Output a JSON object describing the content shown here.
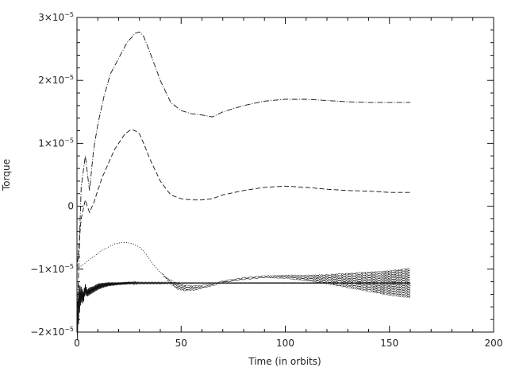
{
  "chart_data": {
    "type": "line",
    "title": "",
    "xlabel": "Time (in orbits)",
    "ylabel": "Torque",
    "xlim": [
      0,
      200
    ],
    "ylim": [
      -2e-05,
      3e-05
    ],
    "grid": false,
    "legend": "none",
    "x_ticks": [
      0,
      50,
      100,
      150,
      200
    ],
    "x_tick_labels": [
      "0",
      "50",
      "100",
      "150",
      "200"
    ],
    "y_ticks": [
      -2e-05,
      -1e-05,
      0,
      1e-05,
      2e-05,
      3e-05
    ],
    "y_tick_labels": [
      {
        "mant": "−2×10",
        "exp": "−5"
      },
      {
        "mant": "−1×10",
        "exp": "−5"
      },
      {
        "mant": "0",
        "exp": ""
      },
      {
        "mant": "1×10",
        "exp": "−5"
      },
      {
        "mant": "2×10",
        "exp": "−5"
      },
      {
        "mant": "3×10",
        "exp": "−5"
      }
    ],
    "series": [
      {
        "style": "dash-dot",
        "x": [
          0,
          2,
          4,
          6,
          8,
          10,
          13,
          16,
          20,
          24,
          28,
          30,
          32,
          35,
          40,
          45,
          50,
          55,
          60,
          65,
          70,
          80,
          90,
          100,
          110,
          120,
          130,
          140,
          150,
          160
        ],
        "y": [
          -1.9e-05,
          3e-06,
          8e-06,
          2.5e-06,
          9e-06,
          1.3e-05,
          1.75e-05,
          2.1e-05,
          2.35e-05,
          2.6e-05,
          2.75e-05,
          2.77e-05,
          2.7e-05,
          2.45e-05,
          2e-05,
          1.65e-05,
          1.52e-05,
          1.47e-05,
          1.45e-05,
          1.42e-05,
          1.5e-05,
          1.6e-05,
          1.67e-05,
          1.7e-05,
          1.7e-05,
          1.68e-05,
          1.66e-05,
          1.65e-05,
          1.65e-05,
          1.65e-05
        ]
      },
      {
        "style": "dashed",
        "x": [
          0,
          2,
          4,
          6,
          8,
          10,
          12,
          14,
          16,
          18,
          20,
          23,
          26,
          28,
          30,
          32,
          35,
          40,
          45,
          50,
          55,
          60,
          65,
          70,
          80,
          90,
          100,
          110,
          120,
          130,
          140,
          150,
          160
        ],
        "y": [
          -1e-05,
          -2e-06,
          1e-06,
          -1e-06,
          5e-07,
          2.5e-06,
          4.5e-06,
          6e-06,
          7.5e-06,
          9e-06,
          1e-05,
          1.15e-05,
          1.22e-05,
          1.2e-05,
          1.15e-05,
          1e-05,
          7.5e-06,
          4e-06,
          1.8e-06,
          1.2e-06,
          1e-06,
          1e-06,
          1.2e-06,
          1.8e-06,
          2.5e-06,
          3e-06,
          3.2e-06,
          3e-06,
          2.7e-06,
          2.5e-06,
          2.4e-06,
          2.2e-06,
          2.2e-06
        ]
      },
      {
        "style": "dotted",
        "x": [
          0,
          2,
          4,
          6,
          8,
          10,
          12,
          15,
          18,
          21,
          24,
          27,
          30,
          33,
          36,
          40,
          44,
          48,
          52,
          56,
          60,
          65,
          70,
          80,
          90,
          100,
          110,
          120,
          130,
          140,
          150,
          155,
          160
        ],
        "y": [
          -1e-05,
          -9.5e-06,
          -9e-06,
          -8.5e-06,
          -8e-06,
          -7.5e-06,
          -7e-06,
          -6.5e-06,
          -6e-06,
          -5.8e-06,
          -5.8e-06,
          -6e-06,
          -6.5e-06,
          -7.5e-06,
          -9e-06,
          -1.05e-05,
          -1.18e-05,
          -1.27e-05,
          -1.3e-05,
          -1.3e-05,
          -1.28e-05,
          -1.25e-05,
          -1.2e-05,
          -1.15e-05,
          -1.12e-05,
          -1.12e-05,
          -1.14e-05,
          -1.16e-05,
          -1.18e-05,
          -1.2e-05,
          -1.22e-05,
          -1.22e-05,
          -1.22e-05
        ],
        "spread": [
          0,
          0,
          0,
          0,
          0,
          0,
          0,
          0,
          0,
          0,
          0,
          0,
          0,
          0,
          0,
          0,
          3e-07,
          5e-07,
          5e-07,
          4e-07,
          3e-07,
          2e-07,
          2e-07,
          2e-07,
          2e-07,
          3e-07,
          5e-07,
          8e-07,
          1.2e-06,
          1.6e-06,
          2e-06,
          2.2e-06,
          2.4e-06
        ]
      },
      {
        "style": "solid",
        "x": [
          0,
          1,
          2,
          3,
          4,
          5,
          6,
          8,
          10,
          12,
          15,
          20,
          25,
          30,
          40,
          50,
          60,
          80,
          100,
          120,
          140,
          160
        ],
        "y": [
          -1.95e-05,
          -1.5e-05,
          -1.4e-05,
          -1.45e-05,
          -1.32e-05,
          -1.38e-05,
          -1.35e-05,
          -1.32e-05,
          -1.28e-05,
          -1.26e-05,
          -1.24e-05,
          -1.23e-05,
          -1.22e-05,
          -1.22e-05,
          -1.22e-05,
          -1.22e-05,
          -1.22e-05,
          -1.22e-05,
          -1.22e-05,
          -1.22e-05,
          -1.22e-05,
          -1.22e-05
        ],
        "spread": [
          3e-06,
          2.5e-06,
          1.2e-06,
          1e-06,
          8e-07,
          6e-07,
          6e-07,
          5e-07,
          5e-07,
          4e-07,
          3e-07,
          2e-07,
          2e-07,
          1e-07,
          1e-07,
          5e-08,
          5e-08,
          5e-08,
          5e-08,
          5e-08,
          5e-08,
          5e-08
        ]
      }
    ]
  }
}
